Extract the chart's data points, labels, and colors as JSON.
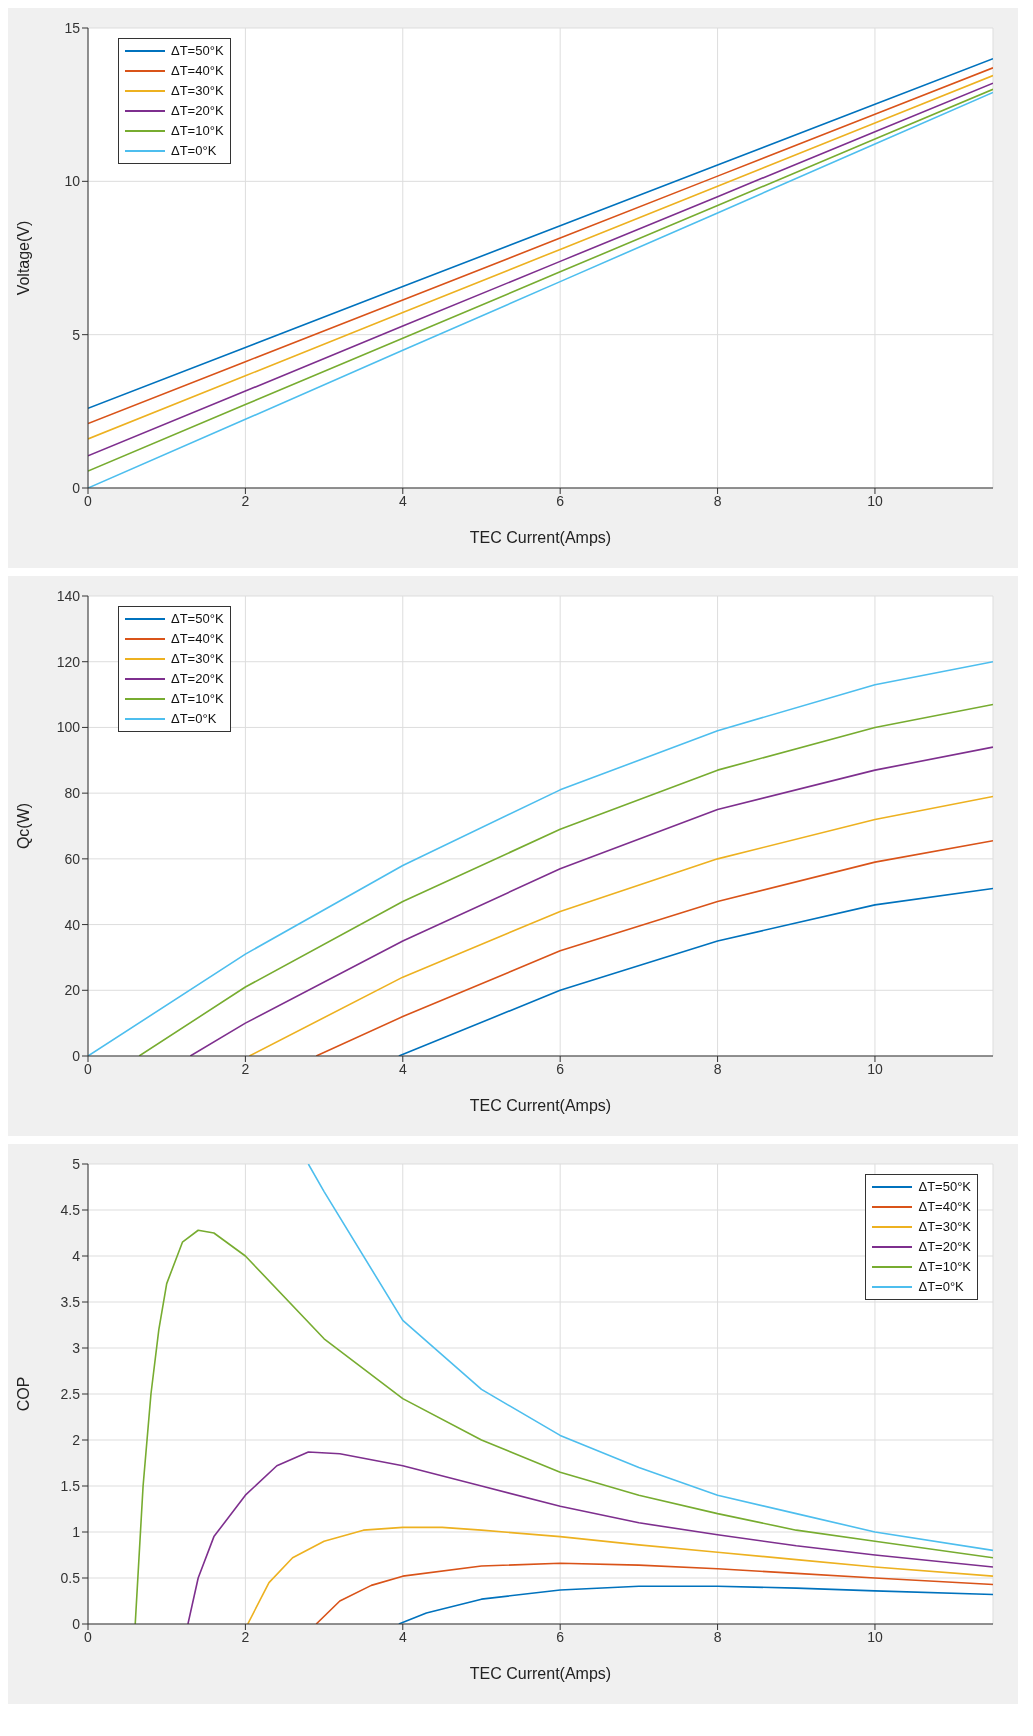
{
  "chart_data": [
    {
      "type": "line",
      "xlabel": "TEC Current(Amps)",
      "ylabel": "Voltage(V)",
      "xlim": [
        0,
        11.5
      ],
      "xticks": [
        0,
        2,
        4,
        6,
        8,
        10
      ],
      "ylim": [
        0,
        15
      ],
      "yticks": [
        0,
        5,
        10,
        15
      ],
      "grid": true,
      "legend": "top left",
      "series": [
        {
          "name": "ΔT=50°K",
          "color": "#0072bd",
          "x": [
            0,
            2,
            4,
            6,
            8,
            10,
            11.5
          ],
          "values": [
            2.6,
            4.58,
            6.57,
            8.55,
            10.53,
            12.51,
            14.0
          ]
        },
        {
          "name": "ΔT=40°K",
          "color": "#d95319",
          "x": [
            0,
            2,
            4,
            6,
            8,
            10,
            11.5
          ],
          "values": [
            2.1,
            4.12,
            6.13,
            8.15,
            10.17,
            12.19,
            13.7
          ]
        },
        {
          "name": "ΔT=30°K",
          "color": "#edb120",
          "x": [
            0,
            2,
            4,
            6,
            8,
            10,
            11.5
          ],
          "values": [
            1.6,
            3.66,
            5.72,
            7.78,
            9.84,
            11.9,
            13.45
          ]
        },
        {
          "name": "ΔT=20°K",
          "color": "#7e2f8e",
          "x": [
            0,
            2,
            4,
            6,
            8,
            10,
            11.5
          ],
          "values": [
            1.05,
            3.16,
            5.28,
            7.39,
            9.5,
            11.62,
            13.2
          ]
        },
        {
          "name": "ΔT=10°K",
          "color": "#77ac30",
          "x": [
            0,
            2,
            4,
            6,
            8,
            10,
            11.5
          ],
          "values": [
            0.55,
            2.72,
            4.88,
            7.05,
            9.21,
            11.38,
            13.0
          ]
        },
        {
          "name": "ΔT=0°K",
          "color": "#4dbeee",
          "x": [
            0,
            2,
            4,
            6,
            8,
            10,
            11.5
          ],
          "values": [
            0,
            2.24,
            4.49,
            6.73,
            8.97,
            11.22,
            12.9
          ]
        }
      ]
    },
    {
      "type": "line",
      "xlabel": "TEC Current(Amps)",
      "ylabel": "Qc(W)",
      "xlim": [
        0,
        11.5
      ],
      "xticks": [
        0,
        2,
        4,
        6,
        8,
        10
      ],
      "ylim": [
        0,
        140
      ],
      "yticks": [
        0,
        20,
        40,
        60,
        80,
        100,
        120,
        140
      ],
      "grid": true,
      "legend": "top left",
      "series": [
        {
          "name": "ΔT=50°K",
          "color": "#0072bd",
          "x": [
            3.95,
            6,
            8,
            10,
            11.5
          ],
          "values": [
            0,
            20,
            35,
            46,
            51
          ]
        },
        {
          "name": "ΔT=40°K",
          "color": "#d95319",
          "x": [
            2.9,
            4,
            6,
            8,
            10,
            11.5
          ],
          "values": [
            0,
            12,
            32,
            47,
            59,
            65.5
          ]
        },
        {
          "name": "ΔT=30°K",
          "color": "#edb120",
          "x": [
            2.05,
            4,
            6,
            8,
            10,
            11.5
          ],
          "values": [
            0,
            24,
            44,
            60,
            72,
            79
          ]
        },
        {
          "name": "ΔT=20°K",
          "color": "#7e2f8e",
          "x": [
            1.3,
            2,
            4,
            6,
            8,
            10,
            11.5
          ],
          "values": [
            0,
            10,
            35,
            57,
            75,
            87,
            94
          ]
        },
        {
          "name": "ΔT=10°K",
          "color": "#77ac30",
          "x": [
            0.65,
            2,
            4,
            6,
            8,
            10,
            11.5
          ],
          "values": [
            0,
            21,
            47,
            69,
            87,
            100,
            107
          ]
        },
        {
          "name": "ΔT=0°K",
          "color": "#4dbeee",
          "x": [
            0,
            2,
            4,
            6,
            8,
            10,
            11.5
          ],
          "values": [
            0,
            31,
            58,
            81,
            99,
            113,
            120
          ]
        }
      ]
    },
    {
      "type": "line",
      "xlabel": "TEC Current(Amps)",
      "ylabel": "COP",
      "xlim": [
        0,
        11.5
      ],
      "xticks": [
        0,
        2,
        4,
        6,
        8,
        10
      ],
      "ylim": [
        0,
        5
      ],
      "yticks": [
        0,
        0.5,
        1,
        1.5,
        2,
        2.5,
        3,
        3.5,
        4,
        4.5,
        5
      ],
      "grid": true,
      "legend": "top right",
      "series": [
        {
          "name": "ΔT=50°K",
          "color": "#0072bd",
          "x": [
            3.95,
            4.3,
            5,
            6,
            7,
            8,
            9,
            10,
            11.5
          ],
          "values": [
            0,
            0.12,
            0.27,
            0.37,
            0.41,
            0.41,
            0.39,
            0.36,
            0.32
          ]
        },
        {
          "name": "ΔT=40°K",
          "color": "#d95319",
          "x": [
            2.9,
            3.2,
            3.6,
            4,
            5,
            6,
            7,
            8,
            9,
            10,
            11.5
          ],
          "values": [
            0,
            0.25,
            0.42,
            0.52,
            0.63,
            0.66,
            0.64,
            0.6,
            0.55,
            0.5,
            0.43
          ]
        },
        {
          "name": "ΔT=30°K",
          "color": "#edb120",
          "x": [
            2.03,
            2.3,
            2.6,
            3,
            3.5,
            4,
            4.5,
            5,
            6,
            7,
            8,
            9,
            10,
            11.5
          ],
          "values": [
            0,
            0.45,
            0.72,
            0.9,
            1.02,
            1.05,
            1.05,
            1.02,
            0.95,
            0.86,
            0.78,
            0.7,
            0.62,
            0.52
          ]
        },
        {
          "name": "ΔT=20°K",
          "color": "#7e2f8e",
          "x": [
            1.27,
            1.4,
            1.6,
            2,
            2.4,
            2.8,
            3.2,
            4,
            5,
            6,
            7,
            8,
            9,
            10,
            11.5
          ],
          "values": [
            0,
            0.5,
            0.95,
            1.4,
            1.72,
            1.87,
            1.85,
            1.72,
            1.5,
            1.28,
            1.1,
            0.97,
            0.85,
            0.75,
            0.62
          ]
        },
        {
          "name": "ΔT=10°K",
          "color": "#77ac30",
          "x": [
            0.6,
            0.7,
            0.8,
            0.9,
            1,
            1.2,
            1.4,
            1.6,
            2,
            3,
            4,
            5,
            6,
            7,
            8,
            9,
            10,
            11.5
          ],
          "values": [
            0,
            1.5,
            2.5,
            3.2,
            3.7,
            4.15,
            4.28,
            4.25,
            4.0,
            3.1,
            2.45,
            2.0,
            1.65,
            1.4,
            1.2,
            1.02,
            0.9,
            0.72
          ]
        },
        {
          "name": "ΔT=0°K",
          "color": "#4dbeee",
          "x": [
            2.8,
            3,
            4,
            5,
            6,
            7,
            8,
            9,
            10,
            11.5
          ],
          "values": [
            5,
            4.7,
            3.3,
            2.55,
            2.05,
            1.7,
            1.4,
            1.2,
            1.0,
            0.8
          ]
        }
      ]
    }
  ]
}
